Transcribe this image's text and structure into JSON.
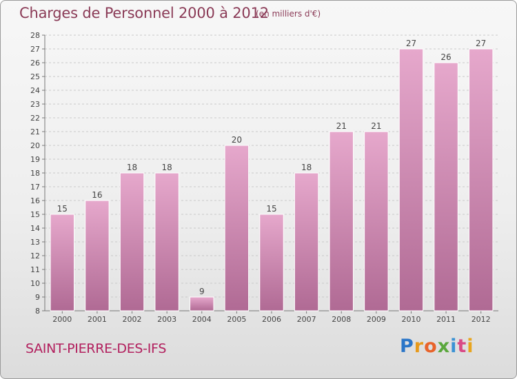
{
  "header": {
    "title": "Charges de Personnel 2000 à 2012",
    "unit": "(en milliers d'€)"
  },
  "footer": {
    "commune": "SAINT-PIERRE-DES-IFS",
    "logo": "Proxiti"
  },
  "colors": {
    "bar_top": "#e6a8cc",
    "bar_bottom": "#b06a94",
    "title": "#8a3a56",
    "commune": "#b2205e"
  },
  "chart_data": {
    "type": "bar",
    "categories": [
      "2000",
      "2001",
      "2002",
      "2003",
      "2004",
      "2005",
      "2006",
      "2007",
      "2008",
      "2009",
      "2010",
      "2011",
      "2012"
    ],
    "values": [
      15,
      16,
      18,
      18,
      9,
      20,
      15,
      18,
      21,
      21,
      27,
      26,
      27
    ],
    "title": "Charges de Personnel 2000 à 2012",
    "ylim": [
      8,
      28
    ],
    "yticks": [
      8,
      9,
      10,
      11,
      12,
      13,
      14,
      15,
      16,
      17,
      18,
      19,
      20,
      21,
      22,
      23,
      24,
      25,
      26,
      27,
      28
    ],
    "grid": true,
    "data_labels": true
  }
}
